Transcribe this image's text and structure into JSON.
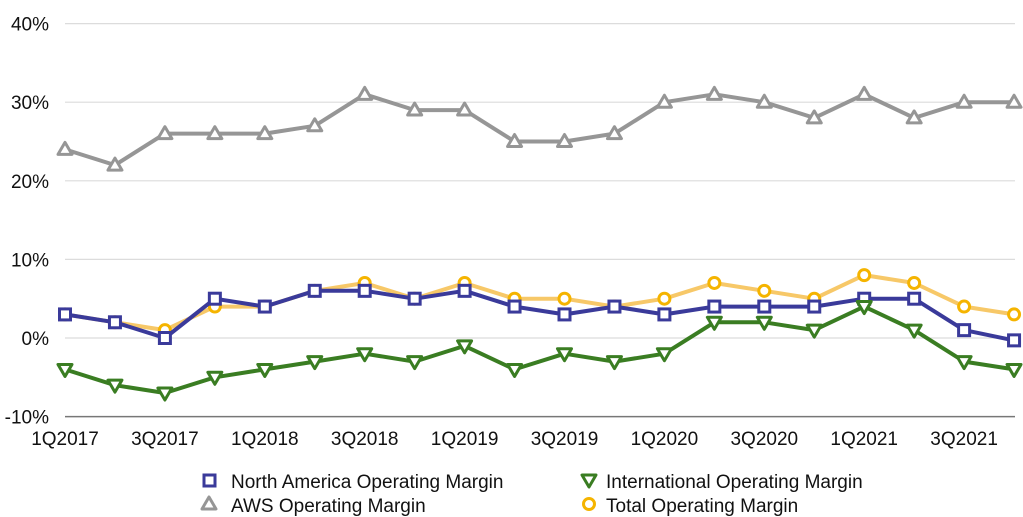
{
  "chart_data": {
    "type": "line",
    "title": "",
    "xlabel": "",
    "ylabel": "",
    "ylim": [
      -10,
      40
    ],
    "yticks": [
      "-10%",
      "0%",
      "10%",
      "20%",
      "30%",
      "40%"
    ],
    "ytick_values": [
      -10,
      0,
      10,
      20,
      30,
      40
    ],
    "grid": true,
    "legend_position": "bottom",
    "x": [
      "1Q2017",
      "2Q2017",
      "3Q2017",
      "4Q2017",
      "1Q2018",
      "2Q2018",
      "3Q2018",
      "4Q2018",
      "1Q2019",
      "2Q2019",
      "3Q2019",
      "4Q2019",
      "1Q2020",
      "2Q2020",
      "3Q2020",
      "4Q2020",
      "1Q2021",
      "2Q2021",
      "3Q2021",
      "4Q2021"
    ],
    "xtick_labels": [
      "1Q2017",
      "3Q2017",
      "1Q2018",
      "3Q2018",
      "1Q2019",
      "3Q2019",
      "1Q2020",
      "3Q2020",
      "1Q2021",
      "3Q2021"
    ],
    "series": [
      {
        "name": "North America Operating Margin",
        "color": "#3a3a9a",
        "marker": "square",
        "values": [
          3,
          2,
          0,
          5,
          4,
          6,
          6,
          5,
          6,
          4,
          3,
          4,
          3,
          4,
          4,
          4,
          5,
          5,
          1,
          -0.3
        ]
      },
      {
        "name": "International Operating Margin",
        "color": "#3a7d22",
        "marker": "triangle-down",
        "values": [
          -4,
          -6,
          -7,
          -5,
          -4,
          -3,
          -2,
          -3,
          -1,
          -4,
          -2,
          -3,
          -2,
          2,
          2,
          1,
          4,
          1,
          -3,
          -4
        ]
      },
      {
        "name": "AWS Operating Margin",
        "color": "#969696",
        "marker": "triangle-up",
        "values": [
          24,
          22,
          26,
          26,
          26,
          27,
          31,
          29,
          29,
          25,
          25,
          26,
          30,
          31,
          30,
          28,
          31,
          28,
          30,
          30
        ]
      },
      {
        "name": "Total Operating Margin",
        "color": "#f5b400",
        "line_color": "#f7c868",
        "marker": "circle",
        "values": [
          3,
          2,
          1,
          4,
          4,
          6,
          7,
          5,
          7,
          5,
          5,
          4,
          5,
          7,
          6,
          5,
          8,
          7,
          4,
          3
        ]
      }
    ]
  },
  "legend": {
    "items": [
      {
        "label": "North America Operating Margin"
      },
      {
        "label": "International Operating Margin"
      },
      {
        "label": "AWS Operating Margin"
      },
      {
        "label": "Total Operating Margin"
      }
    ]
  }
}
